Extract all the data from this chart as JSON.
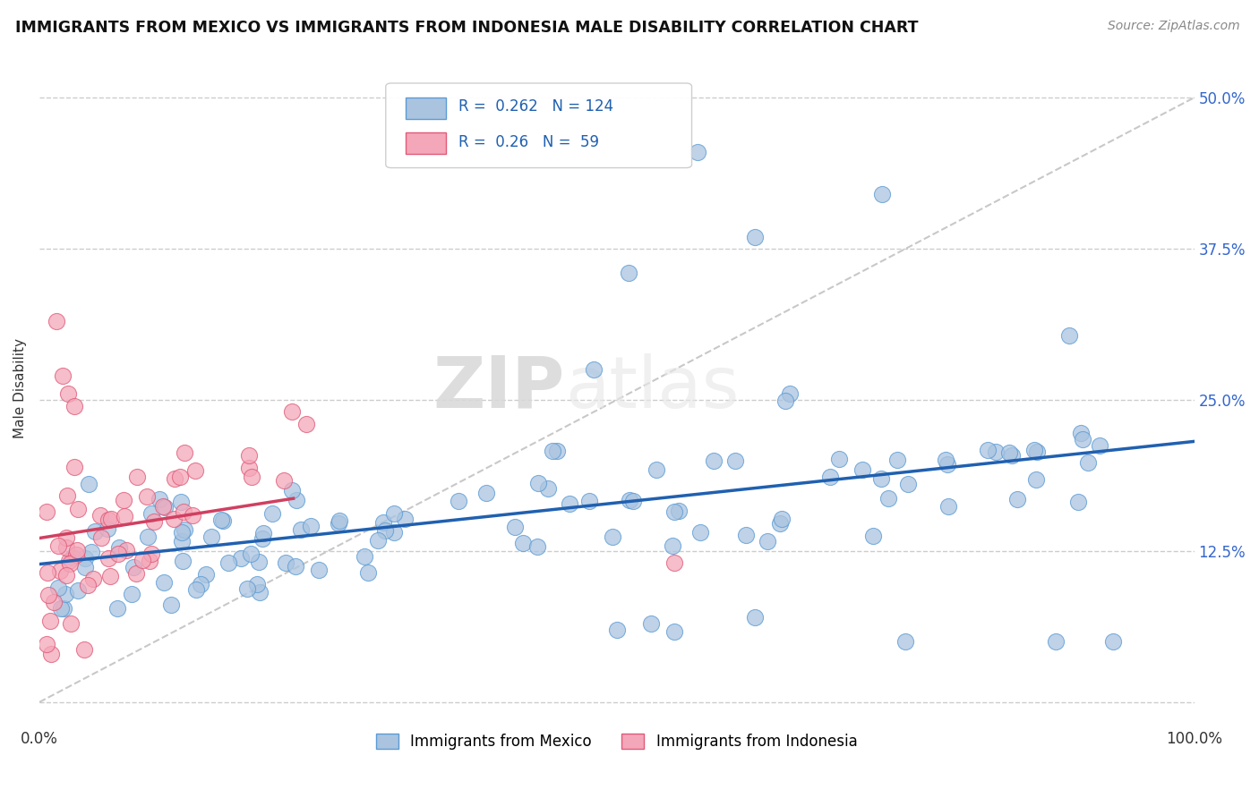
{
  "title": "IMMIGRANTS FROM MEXICO VS IMMIGRANTS FROM INDONESIA MALE DISABILITY CORRELATION CHART",
  "source": "Source: ZipAtlas.com",
  "ylabel": "Male Disability",
  "ytick_values": [
    0,
    0.125,
    0.25,
    0.375,
    0.5
  ],
  "ytick_labels": [
    "0%",
    "12.5%",
    "25.0%",
    "37.5%",
    "50.0%"
  ],
  "xlim": [
    0,
    1.0
  ],
  "ylim": [
    -0.02,
    0.54
  ],
  "mexico_color": "#aac4e0",
  "mexico_edge_color": "#5b9bd5",
  "indonesia_color": "#f4a7b9",
  "indonesia_edge_color": "#e05a78",
  "mexico_R": 0.262,
  "mexico_N": 124,
  "indonesia_R": 0.26,
  "indonesia_N": 59,
  "legend_mexico_label": "Immigrants from Mexico",
  "legend_indonesia_label": "Immigrants from Indonesia",
  "watermark_zip": "ZIP",
  "watermark_atlas": "atlas",
  "trend_blue": "#2060b0",
  "trend_pink": "#d04060",
  "ref_line_color": "#bbbbbb"
}
